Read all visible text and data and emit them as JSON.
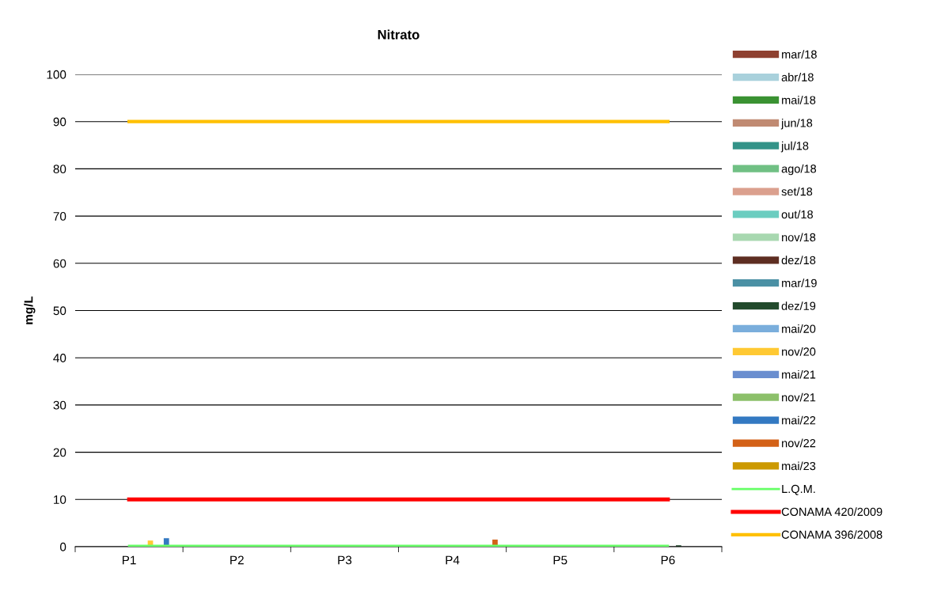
{
  "chart_data": {
    "type": "bar",
    "title": "Nitrato",
    "ylabel": "mg/L",
    "categories": [
      "P1",
      "P2",
      "P3",
      "P4",
      "P5",
      "P6"
    ],
    "ylim": [
      0,
      100
    ],
    "yticks": [
      0,
      10,
      20,
      30,
      40,
      50,
      60,
      70,
      80,
      90,
      100
    ],
    "grid": "y",
    "legend": "right",
    "series": [
      {
        "name": "mar/18",
        "color": "#8e4030",
        "values": [
          null,
          null,
          null,
          null,
          null,
          null
        ]
      },
      {
        "name": "abr/18",
        "color": "#a9d1dc",
        "values": [
          null,
          null,
          null,
          null,
          null,
          null
        ]
      },
      {
        "name": "mai/18",
        "color": "#3a9232",
        "values": [
          null,
          null,
          null,
          null,
          null,
          null
        ]
      },
      {
        "name": "jun/18",
        "color": "#c08a72",
        "values": [
          null,
          null,
          null,
          null,
          null,
          null
        ]
      },
      {
        "name": "jul/18",
        "color": "#339388",
        "values": [
          null,
          null,
          null,
          null,
          null,
          null
        ]
      },
      {
        "name": "ago/18",
        "color": "#70c084",
        "values": [
          null,
          null,
          null,
          null,
          null,
          null
        ]
      },
      {
        "name": "set/18",
        "color": "#dba08e",
        "values": [
          null,
          null,
          null,
          null,
          null,
          null
        ]
      },
      {
        "name": "out/18",
        "color": "#6bcdc0",
        "values": [
          null,
          null,
          null,
          null,
          null,
          null
        ]
      },
      {
        "name": "nov/18",
        "color": "#a8d8b0",
        "values": [
          null,
          null,
          null,
          null,
          null,
          null
        ]
      },
      {
        "name": "dez/18",
        "color": "#5e2e22",
        "values": [
          null,
          null,
          null,
          null,
          null,
          null
        ]
      },
      {
        "name": "mar/19",
        "color": "#4a90a4",
        "values": [
          null,
          null,
          null,
          null,
          null,
          null
        ]
      },
      {
        "name": "dez/19",
        "color": "#224a2c",
        "values": [
          null,
          null,
          null,
          null,
          null,
          0.3
        ]
      },
      {
        "name": "mai/20",
        "color": "#7aaedc",
        "values": [
          null,
          null,
          null,
          null,
          null,
          null
        ]
      },
      {
        "name": "nov/20",
        "color": "#ffc933",
        "values": [
          1.3,
          null,
          null,
          null,
          null,
          null
        ]
      },
      {
        "name": "mai/21",
        "color": "#6a8ecf",
        "values": [
          null,
          null,
          null,
          null,
          null,
          null
        ]
      },
      {
        "name": "nov/21",
        "color": "#8cc06a",
        "values": [
          null,
          null,
          null,
          null,
          null,
          null
        ]
      },
      {
        "name": "mai/22",
        "color": "#3379c2",
        "values": [
          1.8,
          null,
          null,
          null,
          null,
          null
        ]
      },
      {
        "name": "nov/22",
        "color": "#d36117",
        "values": [
          null,
          null,
          null,
          1.5,
          null,
          null
        ]
      },
      {
        "name": "mai/23",
        "color": "#cc9900",
        "values": [
          null,
          null,
          null,
          null,
          null,
          null
        ]
      },
      {
        "name": "L.Q.M.",
        "type": "line",
        "color": "#66ff66",
        "values": [
          0.2,
          0.2,
          0.2,
          0.2,
          0.2,
          0.2
        ]
      },
      {
        "name": "CONAMA 420/2009",
        "type": "line",
        "color": "#ff0000",
        "values": [
          10,
          10,
          10,
          10,
          10,
          10
        ]
      },
      {
        "name": "CONAMA 396/2008",
        "type": "line",
        "color": "#ffc000",
        "values": [
          90,
          90,
          90,
          90,
          90,
          90
        ]
      }
    ]
  }
}
